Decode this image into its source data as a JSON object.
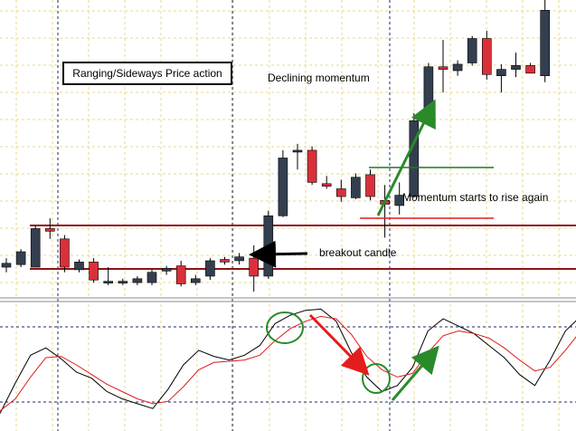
{
  "chart_data": [
    {
      "type": "candlestick",
      "title": "",
      "candles": [
        {
          "o": 262,
          "h": 269,
          "l": 258,
          "c": 265
        },
        {
          "o": 264,
          "h": 276,
          "l": 262,
          "c": 274
        },
        {
          "o": 262,
          "h": 294,
          "l": 262,
          "c": 292
        },
        {
          "o": 292,
          "h": 300,
          "l": 284,
          "c": 290
        },
        {
          "o": 284,
          "h": 287,
          "l": 258,
          "c": 262
        },
        {
          "o": 260,
          "h": 268,
          "l": 258,
          "c": 266
        },
        {
          "o": 266,
          "h": 269,
          "l": 250,
          "c": 252
        },
        {
          "o": 250,
          "h": 262,
          "l": 248,
          "c": 251
        },
        {
          "o": 251,
          "h": 253,
          "l": 248,
          "c": 251
        },
        {
          "o": 250,
          "h": 255,
          "l": 248,
          "c": 253
        },
        {
          "o": 250,
          "h": 260,
          "l": 248,
          "c": 258
        },
        {
          "o": 259,
          "h": 263,
          "l": 256,
          "c": 261
        },
        {
          "o": 263,
          "h": 267,
          "l": 247,
          "c": 249
        },
        {
          "o": 250,
          "h": 256,
          "l": 248,
          "c": 253
        },
        {
          "o": 255,
          "h": 269,
          "l": 252,
          "c": 267
        },
        {
          "o": 268,
          "h": 270,
          "l": 264,
          "c": 266
        },
        {
          "o": 267,
          "h": 273,
          "l": 264,
          "c": 270
        },
        {
          "o": 269,
          "h": 279,
          "l": 243,
          "c": 255
        },
        {
          "o": 255,
          "h": 306,
          "l": 253,
          "c": 302
        },
        {
          "o": 302,
          "h": 353,
          "l": 301,
          "c": 347
        },
        {
          "o": 352,
          "h": 358,
          "l": 338,
          "c": 353
        },
        {
          "o": 353,
          "h": 356,
          "l": 326,
          "c": 328
        },
        {
          "o": 327,
          "h": 333,
          "l": 323,
          "c": 325
        },
        {
          "o": 323,
          "h": 330,
          "l": 313,
          "c": 317
        },
        {
          "o": 316,
          "h": 335,
          "l": 315,
          "c": 332
        },
        {
          "o": 334,
          "h": 338,
          "l": 314,
          "c": 317
        },
        {
          "o": 314,
          "h": 326,
          "l": 285,
          "c": 311
        },
        {
          "o": 310,
          "h": 328,
          "l": 303,
          "c": 318
        },
        {
          "o": 317,
          "h": 382,
          "l": 316,
          "c": 376
        },
        {
          "o": 376,
          "h": 421,
          "l": 374,
          "c": 418
        },
        {
          "o": 418,
          "h": 439,
          "l": 398,
          "c": 416
        },
        {
          "o": 415,
          "h": 423,
          "l": 411,
          "c": 420
        },
        {
          "o": 421,
          "h": 442,
          "l": 419,
          "c": 440
        },
        {
          "o": 440,
          "h": 446,
          "l": 408,
          "c": 412
        },
        {
          "o": 411,
          "h": 420,
          "l": 398,
          "c": 416
        },
        {
          "o": 416,
          "h": 429,
          "l": 410,
          "c": 419
        },
        {
          "o": 419,
          "h": 421,
          "l": 413,
          "c": 413
        },
        {
          "o": 411,
          "h": 470,
          "l": 406,
          "c": 462
        }
      ],
      "colors": {
        "bull": "#333f4f",
        "bear": "#d9303a"
      }
    },
    {
      "type": "line",
      "title": "",
      "series": [
        {
          "color": "#000000",
          "values": [
            10,
            35,
            58,
            64,
            55,
            44,
            39,
            28,
            22,
            18,
            14,
            30,
            50,
            62,
            57,
            54,
            58,
            66,
            84,
            91,
            95,
            96,
            86,
            60,
            40,
            28,
            33,
            48,
            78,
            88,
            82,
            76,
            66,
            56,
            42,
            33,
            54,
            78,
            90
          ]
        },
        {
          "color": "#dd1b1b",
          "values": [
            12,
            22,
            40,
            56,
            57,
            50,
            42,
            34,
            28,
            22,
            18,
            20,
            32,
            46,
            52,
            53,
            54,
            58,
            70,
            80,
            86,
            90,
            88,
            75,
            57,
            46,
            40,
            43,
            60,
            74,
            78,
            76,
            72,
            64,
            54,
            45,
            48,
            62,
            78
          ]
        }
      ]
    }
  ],
  "annotations": {
    "box_label": "Ranging/Sideways Price action",
    "declining": "Declining momentum",
    "rising": "Momentum starts to rise again",
    "breakout": "breakout candle"
  }
}
